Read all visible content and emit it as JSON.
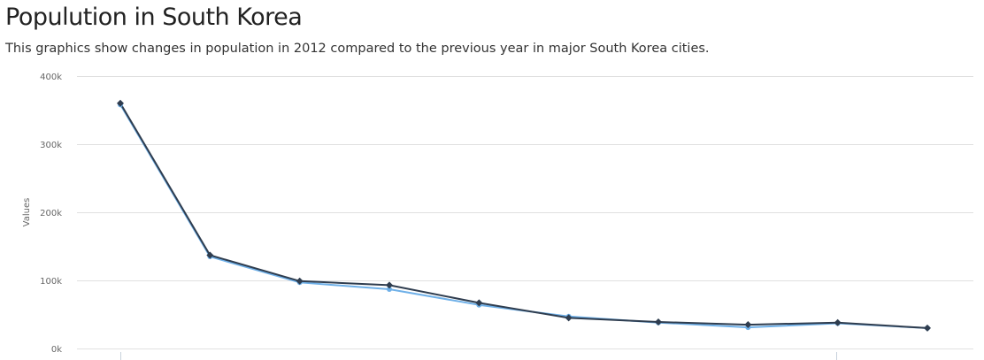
{
  "page": {
    "title": "Populution in South Korea",
    "subtitle": "This graphics show changes in population in 2012 compared to the previous year in major South Korea cities."
  },
  "colors": {
    "series_2012": "#2f3d4f",
    "series_prev": "#6fb0e8",
    "grid": "#e0e0e0"
  },
  "chart_data": {
    "type": "line",
    "ylabel": "Values",
    "xlabel": "",
    "ylim": [
      0,
      400000
    ],
    "y_ticks": [
      {
        "value": 0,
        "label": "0k"
      },
      {
        "value": 100000,
        "label": "100k"
      },
      {
        "value": 200000,
        "label": "200k"
      },
      {
        "value": 300000,
        "label": "300k"
      },
      {
        "value": 400000,
        "label": "400k"
      }
    ],
    "x": [
      1,
      2,
      3,
      4,
      5,
      6,
      7,
      8,
      9,
      10
    ],
    "series": [
      {
        "values": [
          358000,
          135000,
          97000,
          87000,
          64000,
          47000,
          38000,
          31000,
          37000,
          30000
        ],
        "color": "#6fb0e8",
        "marker": "circle"
      },
      {
        "values": [
          360000,
          137000,
          99000,
          93000,
          67000,
          45000,
          39000,
          35000,
          38000,
          30000
        ],
        "color": "#2f3d4f",
        "marker": "diamond"
      }
    ],
    "grid": true,
    "legend": "none"
  }
}
